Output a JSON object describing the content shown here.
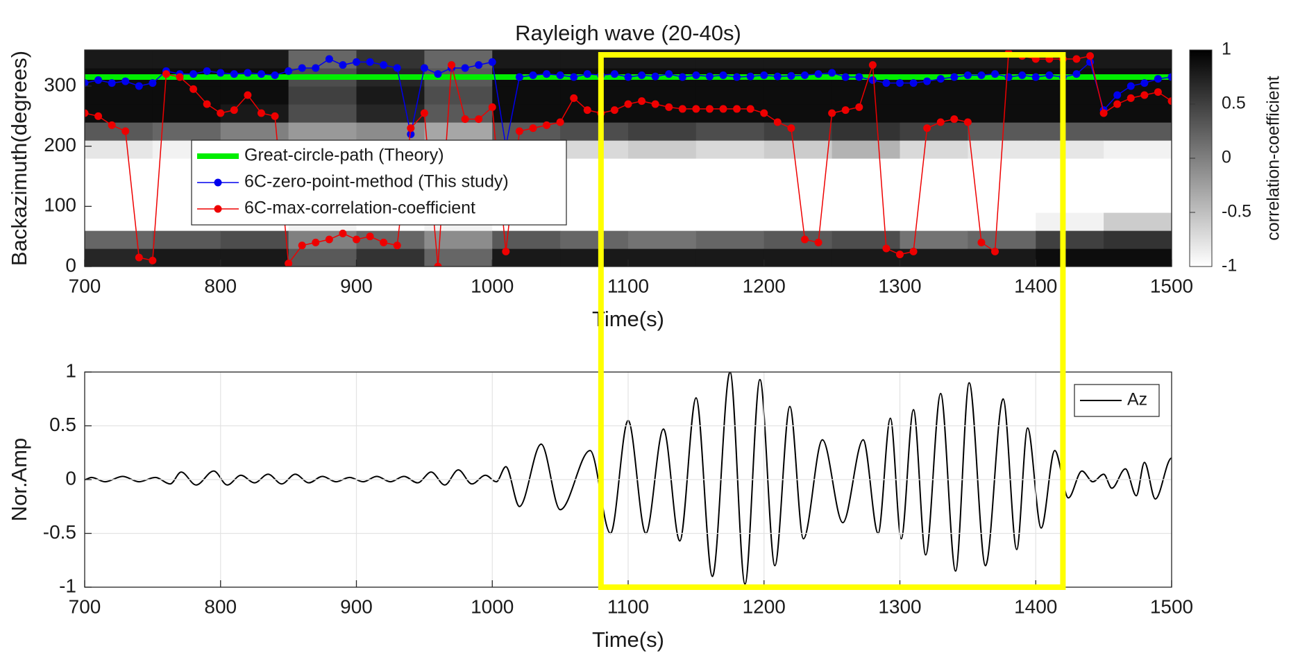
{
  "chart_data": [
    {
      "type": "heatmap",
      "title": "Rayleigh wave (20-40s)",
      "xlabel": "Time(s)",
      "ylabel": "Backazimuth(degrees)",
      "xlim": [
        700,
        1500
      ],
      "xticks": [
        700,
        800,
        900,
        1000,
        1100,
        1200,
        1300,
        1400,
        1500
      ],
      "ylim": [
        0,
        360
      ],
      "yticks": [
        0,
        100,
        200,
        300
      ],
      "heatmap": {
        "x": [
          725,
          775,
          825,
          875,
          925,
          975,
          1025,
          1075,
          1125,
          1175,
          1225,
          1275,
          1325,
          1375,
          1425,
          1475
        ],
        "y": [
          15,
          45,
          75,
          105,
          135,
          165,
          195,
          225,
          255,
          285,
          315,
          345
        ],
        "z": [
          [
            0.7,
            0.2,
            -1,
            -1,
            -1,
            -1,
            -0.8,
            0.3,
            0.9,
            0.9,
            0.9,
            0.8
          ],
          [
            0.8,
            0.3,
            -1,
            -1,
            -1,
            -1,
            -0.9,
            0.2,
            0.9,
            0.9,
            0.9,
            0.8
          ],
          [
            0.8,
            0.4,
            -1,
            -1,
            -1,
            -1,
            -0.9,
            0,
            0.8,
            0.9,
            0.9,
            0.8
          ],
          [
            0.3,
            0,
            -0.9,
            -1,
            -1,
            -1,
            -0.9,
            -0.2,
            0.4,
            0.5,
            0.4,
            0.2
          ],
          [
            0.6,
            0.2,
            -1,
            -1,
            -1,
            -1,
            -0.9,
            -0.1,
            0.7,
            0.8,
            0.7,
            0.6
          ],
          [
            0.2,
            -0.1,
            -0.9,
            -1,
            -1,
            -1,
            -0.9,
            -0.3,
            0.3,
            0.4,
            0.3,
            0.2
          ],
          [
            0.8,
            0.3,
            -1,
            -1,
            -1,
            -1,
            -0.8,
            0.3,
            0.9,
            0.9,
            0.9,
            0.8
          ],
          [
            0.8,
            0.2,
            -1,
            -1,
            -1,
            -1,
            -0.7,
            0.4,
            0.9,
            0.9,
            0.9,
            0.8
          ],
          [
            0.8,
            0.1,
            -1,
            -1,
            -1,
            -1,
            -0.6,
            0.5,
            0.9,
            0.9,
            0.9,
            0.8
          ],
          [
            0.8,
            0.2,
            -1,
            -1,
            -1,
            -1,
            -0.7,
            0.4,
            0.9,
            0.9,
            0.9,
            0.8
          ],
          [
            0.8,
            0.3,
            -1,
            -1,
            -1,
            -1,
            -0.6,
            0.5,
            0.9,
            0.9,
            0.9,
            0.8
          ],
          [
            0.8,
            0.4,
            -1,
            -1,
            -1,
            -1,
            -0.4,
            0.6,
            0.9,
            0.9,
            0.9,
            0.8
          ],
          [
            0.8,
            0.1,
            -1,
            -1,
            -1,
            -1,
            -0.7,
            0.5,
            0.9,
            0.9,
            0.9,
            0.8
          ],
          [
            0.8,
            0.2,
            -1,
            -1,
            -1,
            -1,
            -0.8,
            0.3,
            0.9,
            0.9,
            0.9,
            0.8
          ],
          [
            0.9,
            0.5,
            -0.9,
            -1,
            -1,
            -1,
            -0.8,
            0.3,
            0.9,
            0.9,
            0.9,
            0.8
          ],
          [
            0.9,
            0.6,
            -0.6,
            -1,
            -1,
            -1,
            -0.9,
            0.3,
            0.9,
            0.9,
            0.9,
            0.8
          ]
        ]
      },
      "colorbar": {
        "label": "correlation-coefficient",
        "clim": [
          -1,
          1
        ],
        "ticks": [
          1,
          0.5,
          0,
          -0.5,
          -1
        ]
      },
      "legend": "center-left",
      "series": [
        {
          "name": "Great-circle-path (Theory)",
          "color": "#00ee00",
          "line_width": 8,
          "markers": false,
          "x": [
            700,
            1500
          ],
          "values": [
            315,
            315
          ]
        },
        {
          "name": "6C-zero-point-method (This study)",
          "color": "#0000ee",
          "line_width": 1.5,
          "markers": true,
          "x": [
            700,
            710,
            720,
            730,
            740,
            750,
            760,
            770,
            780,
            790,
            800,
            810,
            820,
            830,
            840,
            850,
            860,
            870,
            880,
            890,
            900,
            910,
            920,
            930,
            940,
            950,
            960,
            970,
            980,
            990,
            1000,
            1010,
            1020,
            1030,
            1040,
            1050,
            1060,
            1070,
            1080,
            1090,
            1100,
            1110,
            1120,
            1130,
            1140,
            1150,
            1160,
            1170,
            1180,
            1190,
            1200,
            1210,
            1220,
            1230,
            1240,
            1250,
            1260,
            1270,
            1280,
            1290,
            1300,
            1310,
            1320,
            1330,
            1340,
            1350,
            1360,
            1370,
            1380,
            1390,
            1400,
            1410,
            1420,
            1430,
            1440,
            1450,
            1460,
            1470,
            1480,
            1490,
            1500
          ],
          "values": [
            305,
            310,
            305,
            308,
            300,
            305,
            325,
            320,
            320,
            325,
            322,
            320,
            322,
            320,
            318,
            325,
            330,
            330,
            345,
            335,
            340,
            340,
            335,
            330,
            220,
            330,
            320,
            330,
            330,
            335,
            340,
            200,
            315,
            318,
            320,
            318,
            315,
            320,
            318,
            320,
            315,
            318,
            316,
            320,
            315,
            318,
            316,
            318,
            315,
            316,
            318,
            316,
            317,
            318,
            320,
            322,
            315,
            315,
            310,
            305,
            305,
            305,
            308,
            312,
            315,
            318,
            318,
            320,
            315,
            318,
            315,
            318,
            315,
            320,
            340,
            260,
            285,
            300,
            305,
            312,
            315
          ]
        },
        {
          "name": "6C-max-correlation-coefficient",
          "color": "#ee0000",
          "line_width": 1.5,
          "markers": true,
          "x": [
            700,
            710,
            720,
            730,
            740,
            750,
            760,
            770,
            780,
            790,
            800,
            810,
            820,
            830,
            840,
            850,
            860,
            870,
            880,
            890,
            900,
            910,
            920,
            930,
            940,
            950,
            960,
            970,
            980,
            990,
            1000,
            1010,
            1020,
            1030,
            1040,
            1050,
            1060,
            1070,
            1080,
            1090,
            1100,
            1110,
            1120,
            1130,
            1140,
            1150,
            1160,
            1170,
            1180,
            1190,
            1200,
            1210,
            1220,
            1230,
            1240,
            1250,
            1260,
            1270,
            1280,
            1290,
            1300,
            1310,
            1320,
            1330,
            1340,
            1350,
            1360,
            1370,
            1380,
            1390,
            1400,
            1410,
            1420,
            1430,
            1440,
            1450,
            1460,
            1470,
            1480,
            1490,
            1500
          ],
          "values": [
            255,
            250,
            235,
            225,
            15,
            10,
            320,
            315,
            295,
            270,
            255,
            260,
            285,
            255,
            250,
            5,
            35,
            40,
            45,
            55,
            45,
            50,
            40,
            35,
            230,
            255,
            0,
            335,
            245,
            245,
            265,
            25,
            225,
            230,
            235,
            240,
            280,
            260,
            255,
            260,
            270,
            275,
            270,
            265,
            262,
            262,
            262,
            262,
            262,
            262,
            255,
            240,
            230,
            45,
            40,
            255,
            260,
            265,
            335,
            30,
            20,
            25,
            230,
            240,
            245,
            240,
            40,
            25,
            355,
            350,
            345,
            345,
            345,
            345,
            350,
            255,
            270,
            280,
            285,
            290,
            275
          ]
        }
      ]
    },
    {
      "type": "line",
      "xlabel": "Time(s)",
      "ylabel": "Nor.Amp",
      "grid": true,
      "legend": "upper-right",
      "xlim": [
        700,
        1500
      ],
      "xticks": [
        700,
        800,
        900,
        1000,
        1100,
        1200,
        1300,
        1400,
        1500
      ],
      "ylim": [
        -1,
        1
      ],
      "yticks": [
        -1,
        -0.5,
        0,
        0.5,
        1
      ],
      "series": [
        {
          "name": "Az",
          "color": "#000000",
          "smooth": true,
          "x": [
            700,
            705,
            715,
            728,
            740,
            752,
            763,
            771,
            782,
            795,
            805,
            815,
            825,
            835,
            845,
            855,
            865,
            875,
            885,
            895,
            905,
            915,
            925,
            935,
            945,
            955,
            965,
            975,
            985,
            995,
            1003,
            1010,
            1020,
            1036,
            1050,
            1072,
            1087,
            1100,
            1113,
            1126,
            1138,
            1150,
            1162,
            1175,
            1186,
            1197,
            1208,
            1219,
            1229,
            1243,
            1258,
            1273,
            1284,
            1293,
            1301,
            1310,
            1319,
            1330,
            1341,
            1351,
            1363,
            1376,
            1386,
            1394,
            1404,
            1414,
            1424,
            1434,
            1442,
            1450,
            1456,
            1466,
            1474,
            1480,
            1488,
            1500
          ],
          "values": [
            0,
            0.02,
            -0.02,
            0.03,
            -0.02,
            0.02,
            -0.04,
            0.07,
            -0.05,
            0.08,
            -0.05,
            0.04,
            -0.03,
            0.05,
            -0.04,
            0.05,
            -0.03,
            0.03,
            -0.02,
            0.02,
            -0.02,
            0.03,
            -0.02,
            0.03,
            -0.03,
            0.07,
            -0.05,
            0.09,
            -0.04,
            0.04,
            -0.02,
            0.12,
            -0.25,
            0.33,
            -0.28,
            0.27,
            -0.5,
            0.55,
            -0.5,
            0.47,
            -0.57,
            0.76,
            -0.9,
            1,
            -0.97,
            0.93,
            -0.8,
            0.68,
            -0.55,
            0.37,
            -0.4,
            0.37,
            -0.5,
            0.57,
            -0.55,
            0.65,
            -0.7,
            0.8,
            -0.85,
            0.9,
            -0.8,
            0.75,
            -0.65,
            0.48,
            -0.45,
            0.27,
            -0.17,
            0.08,
            -0.02,
            0.05,
            -0.08,
            0.1,
            -0.15,
            0.16,
            -0.18,
            0.2
          ]
        }
      ]
    }
  ],
  "highlight": {
    "xlim": [
      1080,
      1420
    ],
    "color": "#ffff00"
  }
}
